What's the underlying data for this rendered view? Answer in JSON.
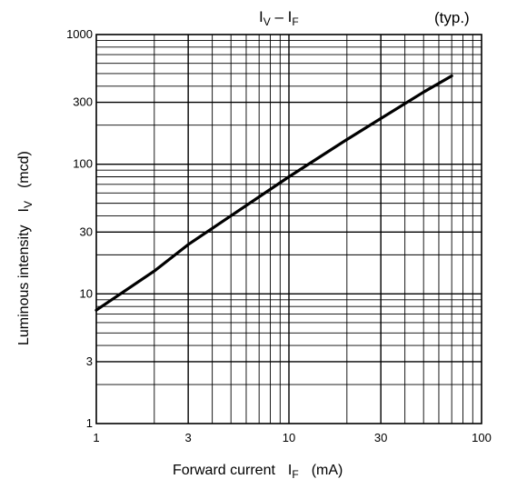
{
  "chart_data": {
    "type": "line",
    "title_main": "I",
    "title_sub1": "V",
    "title_mid": " – I",
    "title_sub2": "F",
    "note": "(typ.)",
    "xlabel": "Forward current",
    "xlabel_symbol": "I",
    "xlabel_sub": "F",
    "xlabel_unit": "(mA)",
    "ylabel": "Luminous intensity",
    "ylabel_symbol": "I",
    "ylabel_sub": "V",
    "ylabel_unit": "(mcd)",
    "xscale": "log",
    "yscale": "log",
    "xlim": [
      1,
      100
    ],
    "ylim": [
      1,
      1000
    ],
    "grid": true,
    "x_ticks": [
      {
        "value": 1,
        "label": "1"
      },
      {
        "value": 3,
        "label": "3"
      },
      {
        "value": 10,
        "label": "10"
      },
      {
        "value": 30,
        "label": "30"
      },
      {
        "value": 100,
        "label": "100"
      }
    ],
    "y_ticks": [
      {
        "value": 1,
        "label": "1"
      },
      {
        "value": 3,
        "label": "3"
      },
      {
        "value": 10,
        "label": "10"
      },
      {
        "value": 30,
        "label": "30"
      },
      {
        "value": 100,
        "label": "100"
      },
      {
        "value": 300,
        "label": "300"
      },
      {
        "value": 1000,
        "label": "1000"
      }
    ],
    "series": [
      {
        "x": [
          1,
          2,
          3,
          5,
          10,
          20,
          30,
          50,
          70
        ],
        "y": [
          7.5,
          15,
          24,
          40,
          80,
          155,
          225,
          360,
          480
        ]
      }
    ]
  }
}
